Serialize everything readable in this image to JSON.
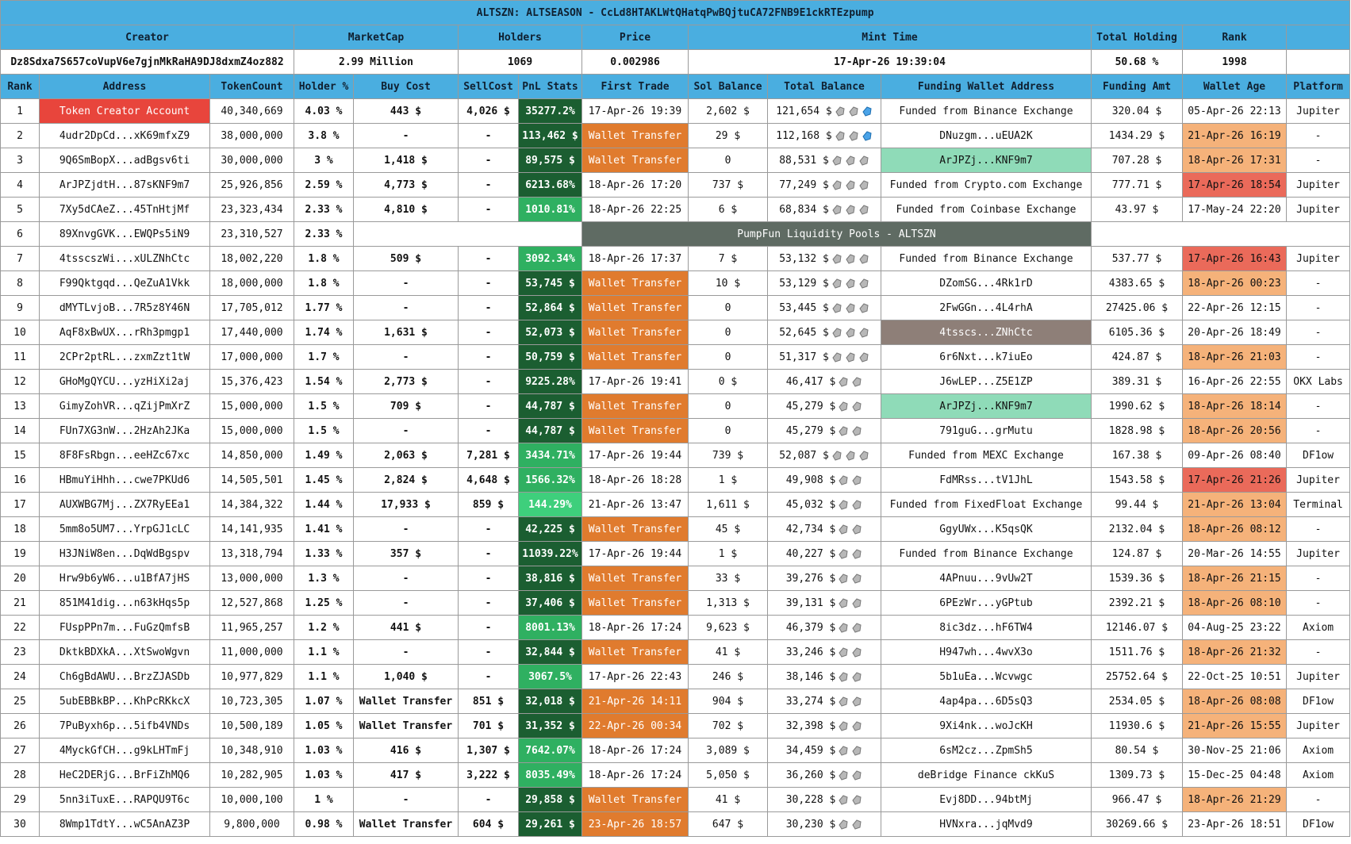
{
  "header": {
    "title": "ALTSZN: ALTSEASON - CcLd8HTAKLWtQHatqPwBQjtuCA72FNB9E1ckRTEzpump"
  },
  "summary": {
    "headers": [
      "Creator",
      "MarketCap",
      "Holders",
      "Price",
      "Mint Time",
      "Total Holding",
      "Rank"
    ],
    "values": [
      "Dz8Sdxa7S657coVupV6e7gjnMkRaHA9DJ8dxmZ4oz882",
      "2.99 Million",
      "1069",
      "0.002986",
      "17-Apr-26 19:39:04",
      "50.68 %",
      "1998"
    ]
  },
  "table": {
    "columns": [
      "Rank",
      "Address",
      "TokenCount",
      "Holder %",
      "Buy Cost",
      "SellCost",
      "PnL Stats",
      "First Trade",
      "Sol Balance",
      "Total Balance",
      "Funding Wallet Address",
      "Funding Amt",
      "Wallet Age",
      "Platform"
    ],
    "pool_banner": "PumpFun Liquidity Pools - ALTSZN",
    "rows": [
      [
        "1",
        "Token Creator Account",
        "40,340,669",
        "4.03 %",
        "443 $",
        "4,026 $",
        "35277.2%",
        "17-Apr-26 19:39",
        "2,602 $",
        "121,654 $",
        "Funded from Binance Exchange",
        "320.04 $",
        "05-Apr-26 22:13",
        "Jupiter"
      ],
      [
        "2",
        "4udr2DpCd...xK69mfxZ9",
        "38,000,000",
        "3.8 %",
        "-",
        "-",
        "113,462 $",
        "Wallet Transfer",
        "29 $",
        "112,168 $",
        "DNuzgm...uEUA2K",
        "1434.29 $",
        "21-Apr-26 16:19",
        "-"
      ],
      [
        "3",
        "9Q6SmBopX...adBgsv6ti",
        "30,000,000",
        "3 %",
        "1,418 $",
        "-",
        "89,575 $",
        "Wallet Transfer",
        "0",
        "88,531 $",
        "ArJPZj...KNF9m7",
        "707.28 $",
        "18-Apr-26 17:31",
        "-"
      ],
      [
        "4",
        "ArJPZjdtH...87sKNF9m7",
        "25,926,856",
        "2.59 %",
        "4,773 $",
        "-",
        "6213.68%",
        "18-Apr-26 17:20",
        "737 $",
        "77,249 $",
        "Funded from Crypto.com Exchange",
        "777.71 $",
        "17-Apr-26 18:54",
        "Jupiter"
      ],
      [
        "5",
        "7Xy5dCAeZ...45TnHtjMf",
        "23,323,434",
        "2.33 %",
        "4,810 $",
        "-",
        "1010.81%",
        "18-Apr-26 22:25",
        "6 $",
        "68,834 $",
        "Funded from Coinbase Exchange",
        "43.97 $",
        "17-May-24 22:20",
        "Jupiter"
      ],
      [
        "6",
        "89XnvgGVK...EWQPs5iN9",
        "23,310,527",
        "2.33 %"
      ],
      [
        "7",
        "4tsscszWi...xULZNhCtc",
        "18,002,220",
        "1.8 %",
        "509 $",
        "-",
        "3092.34%",
        "18-Apr-26 17:37",
        "7 $",
        "53,132 $",
        "Funded from Binance Exchange",
        "537.77 $",
        "17-Apr-26 16:43",
        "Jupiter"
      ],
      [
        "8",
        "F99Qktgqd...QeZuA1Vkk",
        "18,000,000",
        "1.8 %",
        "-",
        "-",
        "53,745 $",
        "Wallet Transfer",
        "10 $",
        "53,129 $",
        "DZomSG...4Rk1rD",
        "4383.65 $",
        "18-Apr-26 00:23",
        "-"
      ],
      [
        "9",
        "dMYTLvjoB...7R5z8Y46N",
        "17,705,012",
        "1.77 %",
        "-",
        "-",
        "52,864 $",
        "Wallet Transfer",
        "0",
        "53,445 $",
        "2FwGGn...4L4rhA",
        "27425.06 $",
        "22-Apr-26 12:15",
        "-"
      ],
      [
        "10",
        "AqF8xBwUX...rRh3pmgp1",
        "17,440,000",
        "1.74 %",
        "1,631 $",
        "-",
        "52,073 $",
        "Wallet Transfer",
        "0",
        "52,645 $",
        "4tsscs...ZNhCtc",
        "6105.36 $",
        "20-Apr-26 18:49",
        "-"
      ],
      [
        "11",
        "2CPr2ptRL...zxmZzt1tW",
        "17,000,000",
        "1.7 %",
        "-",
        "-",
        "50,759 $",
        "Wallet Transfer",
        "0",
        "51,317 $",
        "6r6Nxt...k7iuEo",
        "424.87 $",
        "18-Apr-26 21:03",
        "-"
      ],
      [
        "12",
        "GHoMgQYCU...yzHiXi2aj",
        "15,376,423",
        "1.54 %",
        "2,773 $",
        "-",
        "9225.28%",
        "17-Apr-26 19:41",
        "0 $",
        "46,417 $",
        "J6wLEP...Z5E1ZP",
        "389.31 $",
        "16-Apr-26 22:55",
        "OKX Labs"
      ],
      [
        "13",
        "GimyZohVR...qZijPmXrZ",
        "15,000,000",
        "1.5 %",
        "709 $",
        "-",
        "44,787 $",
        "Wallet Transfer",
        "0",
        "45,279 $",
        "ArJPZj...KNF9m7",
        "1990.62 $",
        "18-Apr-26 18:14",
        "-"
      ],
      [
        "14",
        "FUn7XG3nW...2HzAh2JKa",
        "15,000,000",
        "1.5 %",
        "-",
        "-",
        "44,787 $",
        "Wallet Transfer",
        "0",
        "45,279 $",
        "791guG...grMutu",
        "1828.98 $",
        "18-Apr-26 20:56",
        "-"
      ],
      [
        "15",
        "8F8FsRbgn...eeHZc67xc",
        "14,850,000",
        "1.49 %",
        "2,063 $",
        "7,281 $",
        "3434.71%",
        "17-Apr-26 19:44",
        "739 $",
        "52,087 $",
        "Funded from MEXC Exchange",
        "167.38 $",
        "09-Apr-26 08:40",
        "DF1ow"
      ],
      [
        "16",
        "HBmuYiHhh...cwe7PKUd6",
        "14,505,501",
        "1.45 %",
        "2,824 $",
        "4,648 $",
        "1566.32%",
        "18-Apr-26 18:28",
        "1 $",
        "49,908 $",
        "FdMRss...tV1JhL",
        "1543.58 $",
        "17-Apr-26 21:26",
        "Jupiter"
      ],
      [
        "17",
        "AUXWBG7Mj...ZX7RyEEa1",
        "14,384,322",
        "1.44 %",
        "17,933 $",
        "859 $",
        "144.29%",
        "21-Apr-26 13:47",
        "1,611 $",
        "45,032 $",
        "Funded from FixedFloat Exchange",
        "99.44 $",
        "21-Apr-26 13:04",
        "Terminal"
      ],
      [
        "18",
        "5mm8o5UM7...YrpGJ1cLC",
        "14,141,935",
        "1.41 %",
        "-",
        "-",
        "42,225 $",
        "Wallet Transfer",
        "45 $",
        "42,734 $",
        "GgyUWx...K5qsQK",
        "2132.04 $",
        "18-Apr-26 08:12",
        "-"
      ],
      [
        "19",
        "H3JNiW8en...DqWdBgspv",
        "13,318,794",
        "1.33 %",
        "357 $",
        "-",
        "11039.22%",
        "17-Apr-26 19:44",
        "1 $",
        "40,227 $",
        "Funded from Binance Exchange",
        "124.87 $",
        "20-Mar-26 14:55",
        "Jupiter"
      ],
      [
        "20",
        "Hrw9b6yW6...u1BfA7jHS",
        "13,000,000",
        "1.3 %",
        "-",
        "-",
        "38,816 $",
        "Wallet Transfer",
        "33 $",
        "39,276 $",
        "4APnuu...9vUw2T",
        "1539.36 $",
        "18-Apr-26 21:15",
        "-"
      ],
      [
        "21",
        "851M41dig...n63kHqs5p",
        "12,527,868",
        "1.25 %",
        "-",
        "-",
        "37,406 $",
        "Wallet Transfer",
        "1,313 $",
        "39,131 $",
        "6PEzWr...yGPtub",
        "2392.21 $",
        "18-Apr-26 08:10",
        "-"
      ],
      [
        "22",
        "FUspPPn7m...FuGzQmfsB",
        "11,965,257",
        "1.2 %",
        "441 $",
        "-",
        "8001.13%",
        "18-Apr-26 17:24",
        "9,623 $",
        "46,379 $",
        "8ic3dz...hF6TW4",
        "12146.07 $",
        "04-Aug-25 23:22",
        "Axiom"
      ],
      [
        "23",
        "DktkBDXkA...XtSwoWgvn",
        "11,000,000",
        "1.1 %",
        "-",
        "-",
        "32,844 $",
        "Wallet Transfer",
        "41 $",
        "33,246 $",
        "H947wh...4wvX3o",
        "1511.76 $",
        "18-Apr-26 21:32",
        "-"
      ],
      [
        "24",
        "Ch6gBdAWU...BrzZJASDb",
        "10,977,829",
        "1.1 %",
        "1,040 $",
        "-",
        "3067.5%",
        "17-Apr-26 22:43",
        "246 $",
        "38,146 $",
        "5b1uEa...Wcvwgc",
        "25752.64 $",
        "22-Oct-25 10:51",
        "Jupiter"
      ],
      [
        "25",
        "5ubEBBkBP...KhPcRKkcX",
        "10,723,305",
        "1.07 %",
        "Wallet Transfer",
        "851 $",
        "32,018 $",
        "21-Apr-26 14:11",
        "904 $",
        "33,274 $",
        "4ap4pa...6D5sQ3",
        "2534.05 $",
        "18-Apr-26 08:08",
        "DF1ow"
      ],
      [
        "26",
        "7PuByxh6p...5ifb4VNDs",
        "10,500,189",
        "1.05 %",
        "Wallet Transfer",
        "701 $",
        "31,352 $",
        "22-Apr-26 00:34",
        "702 $",
        "32,398 $",
        "9Xi4nk...woJcKH",
        "11930.6 $",
        "21-Apr-26 15:55",
        "Jupiter"
      ],
      [
        "27",
        "4MyckGfCH...g9kLHTmFj",
        "10,348,910",
        "1.03 %",
        "416 $",
        "1,307 $",
        "7642.07%",
        "18-Apr-26 17:24",
        "3,089 $",
        "34,459 $",
        "6sM2cz...ZpmSh5",
        "80.54 $",
        "30-Nov-25 21:06",
        "Axiom"
      ],
      [
        "28",
        "HeC2DERjG...BrFiZhMQ6",
        "10,282,905",
        "1.03 %",
        "417 $",
        "3,222 $",
        "8035.49%",
        "18-Apr-26 17:24",
        "5,050 $",
        "36,260 $",
        "deBridge Finance ckKuS",
        "1309.73 $",
        "15-Dec-25 04:48",
        "Axiom"
      ],
      [
        "29",
        "5nn3iTuxE...RAPQU9T6c",
        "10,000,100",
        "1 %",
        "-",
        "-",
        "29,858 $",
        "Wallet Transfer",
        "41 $",
        "30,228 $",
        "Evj8DD...94btMj",
        "966.47 $",
        "18-Apr-26 21:29",
        "-"
      ],
      [
        "30",
        "8Wmp1TdtY...wC5AnAZ3P",
        "9,800,000",
        "0.98 %",
        "Wallet Transfer",
        "604 $",
        "29,261 $",
        "23-Apr-26 18:57",
        "647 $",
        "30,230 $",
        "HVNxra...jqMvd9",
        "30269.66 $",
        "23-Apr-26 18:51",
        "DF1ow"
      ]
    ]
  }
}
